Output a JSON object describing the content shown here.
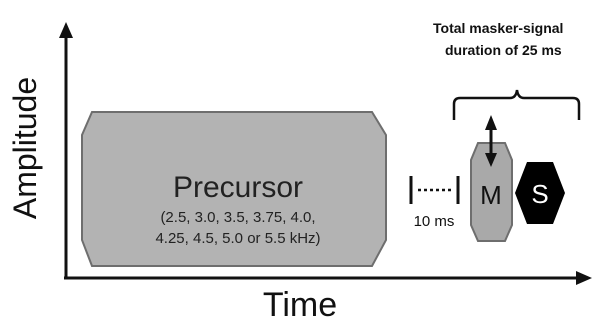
{
  "axes": {
    "y_label": "Amplitude",
    "x_label": "Time"
  },
  "precursor": {
    "title": "Precursor",
    "freq_line1": "(2.5, 3.0, 3.5, 3.75, 4.0,",
    "freq_line2": "4.25, 4.5, 5.0 or 5.5 kHz)"
  },
  "gap": {
    "label": "10 ms"
  },
  "masker": {
    "label": "M"
  },
  "signal": {
    "label": "S"
  },
  "annotation": {
    "line1": "Total masker-signal",
    "line2": "duration of 25 ms"
  },
  "colors": {
    "precursor_fill": "#b3b3b3",
    "masker_fill": "#a9a9a9",
    "signal_fill": "#000000",
    "outline": "#6e6e6e"
  }
}
